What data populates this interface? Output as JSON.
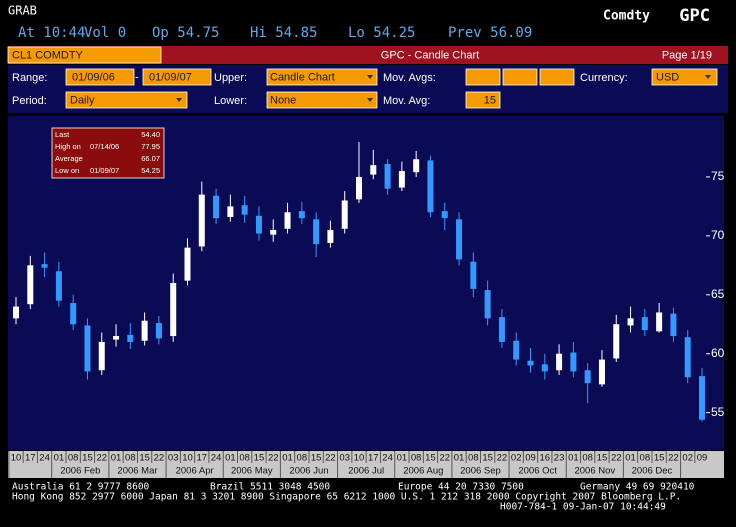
{
  "header": {
    "function": "GRAB",
    "sector": "Comdty",
    "ticker": "GPC",
    "stats": [
      "At 10:44",
      "Vol 0",
      "Op 54.75",
      "Hi 54.85",
      "Lo 54.25",
      "Prev 56.09"
    ]
  },
  "title_bar": {
    "security": "CL1 COMDTY",
    "title": "GPC - Candle Chart",
    "page": "Page 1/19"
  },
  "controls": {
    "range_label": "Range:",
    "range_start": "01/09/06",
    "range_sep": "-",
    "range_end": "01/09/07",
    "upper_label": "Upper:",
    "upper": "Candle Chart",
    "mov_avgs_label": "Mov. Avgs:",
    "currency_label": "Currency:",
    "currency": "USD",
    "period_label": "Period:",
    "period": "Daily",
    "lower_label": "Lower:",
    "lower": "None",
    "mov_avg_label": "Mov. Avg:",
    "mov_avg": "15"
  },
  "chart_data": {
    "type": "candlestick",
    "up_color": "#ffffff",
    "down_color": "#3399ff",
    "background": "#0b0b55",
    "ylim": [
      52,
      80
    ],
    "yticks": [
      55,
      60,
      65,
      70,
      75
    ],
    "months": [
      {
        "label": null,
        "days": [
          "10",
          "17",
          "24"
        ]
      },
      {
        "label": "2006 Feb",
        "days": [
          "01",
          "08",
          "15",
          "22"
        ]
      },
      {
        "label": "2006 Mar",
        "days": [
          "01",
          "08",
          "15",
          "22"
        ]
      },
      {
        "label": "2006 Apr",
        "days": [
          "03",
          "10",
          "17",
          "24"
        ]
      },
      {
        "label": "2006 May",
        "days": [
          "01",
          "08",
          "15",
          "22"
        ]
      },
      {
        "label": "2006 Jun",
        "days": [
          "01",
          "08",
          "15",
          "22"
        ]
      },
      {
        "label": "2006 Jul",
        "days": [
          "03",
          "10",
          "17",
          "24"
        ]
      },
      {
        "label": "2006 Aug",
        "days": [
          "01",
          "08",
          "15",
          "22"
        ]
      },
      {
        "label": "2006 Sep",
        "days": [
          "01",
          "08",
          "15",
          "22"
        ]
      },
      {
        "label": "2006 Oct",
        "days": [
          "02",
          "09",
          "16",
          "23"
        ]
      },
      {
        "label": "2006 Nov",
        "days": [
          "01",
          "08",
          "15",
          "22"
        ]
      },
      {
        "label": "2006 Dec",
        "days": [
          "01",
          "08",
          "15",
          "22"
        ]
      },
      {
        "label": null,
        "days": [
          "02",
          "09"
        ]
      }
    ],
    "open": [
      63.0,
      64.2,
      67.6,
      67.0,
      64.3,
      62.4,
      58.6,
      61.2,
      61.6,
      61.1,
      62.6,
      61.5,
      66.2,
      69.1,
      73.4,
      71.6,
      72.6,
      71.7,
      70.1,
      70.6,
      72.1,
      71.4,
      69.4,
      70.6,
      73.1,
      75.2,
      76.1,
      74.1,
      75.4,
      76.4,
      72.1,
      71.4,
      67.8,
      65.4,
      63.1,
      61.1,
      59.4,
      59.1,
      58.6,
      60.1,
      58.6,
      57.4,
      59.6,
      62.4,
      63.1,
      61.9,
      63.4,
      61.4,
      58.1
    ],
    "high": [
      64.8,
      68.3,
      68.6,
      67.8,
      65.0,
      63.0,
      61.8,
      62.5,
      62.6,
      63.5,
      63.2,
      66.8,
      69.8,
      74.6,
      74.0,
      73.5,
      73.4,
      72.5,
      71.4,
      72.8,
      72.9,
      72.0,
      71.3,
      73.8,
      77.95,
      77.3,
      76.5,
      76.3,
      77.2,
      76.8,
      72.8,
      72.0,
      68.6,
      66.2,
      63.8,
      61.8,
      60.5,
      60.0,
      60.8,
      61.0,
      59.2,
      60.3,
      63.3,
      64.0,
      63.8,
      64.3,
      63.9,
      62.0,
      58.8
    ],
    "low": [
      62.5,
      63.8,
      66.5,
      64.0,
      62.0,
      57.8,
      58.2,
      60.6,
      60.4,
      60.7,
      60.8,
      61.0,
      65.8,
      68.7,
      71.0,
      71.2,
      71.1,
      69.6,
      69.5,
      70.2,
      71.0,
      68.2,
      69.0,
      70.2,
      72.8,
      74.8,
      73.5,
      73.8,
      75.0,
      71.6,
      70.5,
      67.5,
      64.8,
      62.4,
      60.5,
      59.0,
      58.4,
      57.8,
      58.2,
      58.0,
      55.8,
      57.2,
      59.3,
      61.8,
      61.5,
      61.8,
      61.0,
      57.5,
      54.25
    ],
    "close": [
      64.0,
      67.5,
      67.3,
      64.5,
      62.5,
      58.5,
      61.0,
      61.5,
      61.0,
      62.8,
      61.3,
      66.0,
      69.0,
      73.5,
      71.5,
      72.5,
      71.8,
      70.2,
      70.5,
      72.0,
      71.5,
      69.3,
      70.5,
      73.0,
      75.0,
      76.0,
      74.0,
      75.5,
      76.5,
      72.0,
      71.5,
      68.0,
      65.5,
      63.0,
      61.0,
      59.5,
      59.0,
      58.5,
      60.0,
      58.5,
      57.5,
      59.5,
      62.5,
      63.0,
      62.0,
      63.5,
      61.5,
      58.0,
      54.4
    ],
    "summary": [
      {
        "label": "Last",
        "date": null,
        "value": {
          "value": 54.4,
          "label": "54.40"
        }
      },
      {
        "label": "High on",
        "date": "07/14/06",
        "value": 77.95
      },
      {
        "label": "Average",
        "date": null,
        "value": 66.07
      },
      {
        "label": "Low on",
        "date": "01/09/07",
        "value": 54.25
      }
    ]
  },
  "footer": [
    "Australia 61 2 9777 8600",
    "Brazil 5511 3048 4500",
    "Europe 44 20 7330 7500",
    "Germany 49 69 920410",
    "Hong Kong 852 2977 6000 Japan 81 3 3201 8900 Singapore 65 6212 1000 U.S. 1 212 318 2000 Copyright 2007 Bloomberg L.P.",
    "H007-784-1 09-Jan-07 10:44:49"
  ]
}
